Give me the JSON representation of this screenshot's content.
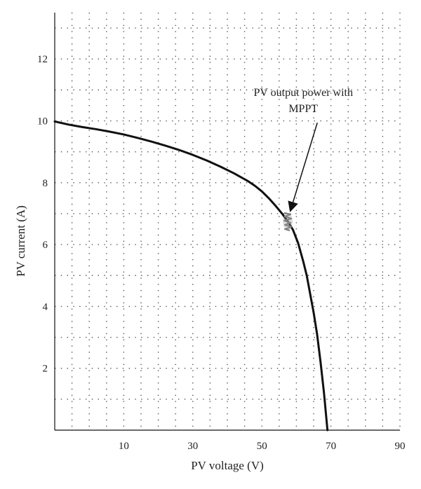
{
  "chart_data": {
    "type": "line",
    "title": "",
    "xlabel": "PV voltage (V)",
    "ylabel": "PV current (A)",
    "xlim": [
      -10,
      90
    ],
    "ylim": [
      0,
      13.5
    ],
    "x_ticks": [
      10,
      30,
      50,
      70,
      90
    ],
    "y_ticks": [
      2,
      4,
      6,
      8,
      10,
      12
    ],
    "grid": true,
    "grid_style": "dotted",
    "x_grid_step": 5,
    "y_grid_step": 1,
    "legend": "none",
    "series": [
      {
        "color": "#111111",
        "x": [
          -10,
          -6,
          -2,
          2,
          6,
          10,
          14,
          18,
          22,
          26,
          30,
          34,
          38,
          42,
          46,
          48,
          50,
          52,
          54,
          56,
          57.5,
          59,
          60.5,
          62,
          63,
          64,
          65,
          66,
          67,
          68,
          69
        ],
        "y": [
          9.98,
          9.88,
          9.8,
          9.73,
          9.65,
          9.56,
          9.45,
          9.33,
          9.2,
          9.06,
          8.9,
          8.72,
          8.52,
          8.3,
          8.05,
          7.9,
          7.72,
          7.5,
          7.25,
          6.98,
          6.75,
          6.48,
          6.05,
          5.45,
          5.0,
          4.4,
          3.8,
          3.1,
          2.2,
          1.2,
          0.0
        ]
      }
    ],
    "mppt_point": {
      "x": 57.5,
      "y": 6.75
    },
    "annotations": [
      {
        "lines": [
          "PV output power with",
          "MPPT"
        ],
        "x": 57.5,
        "y": 6.75,
        "text_anchor_x": 62,
        "text_anchor_y": 10.8
      }
    ]
  }
}
